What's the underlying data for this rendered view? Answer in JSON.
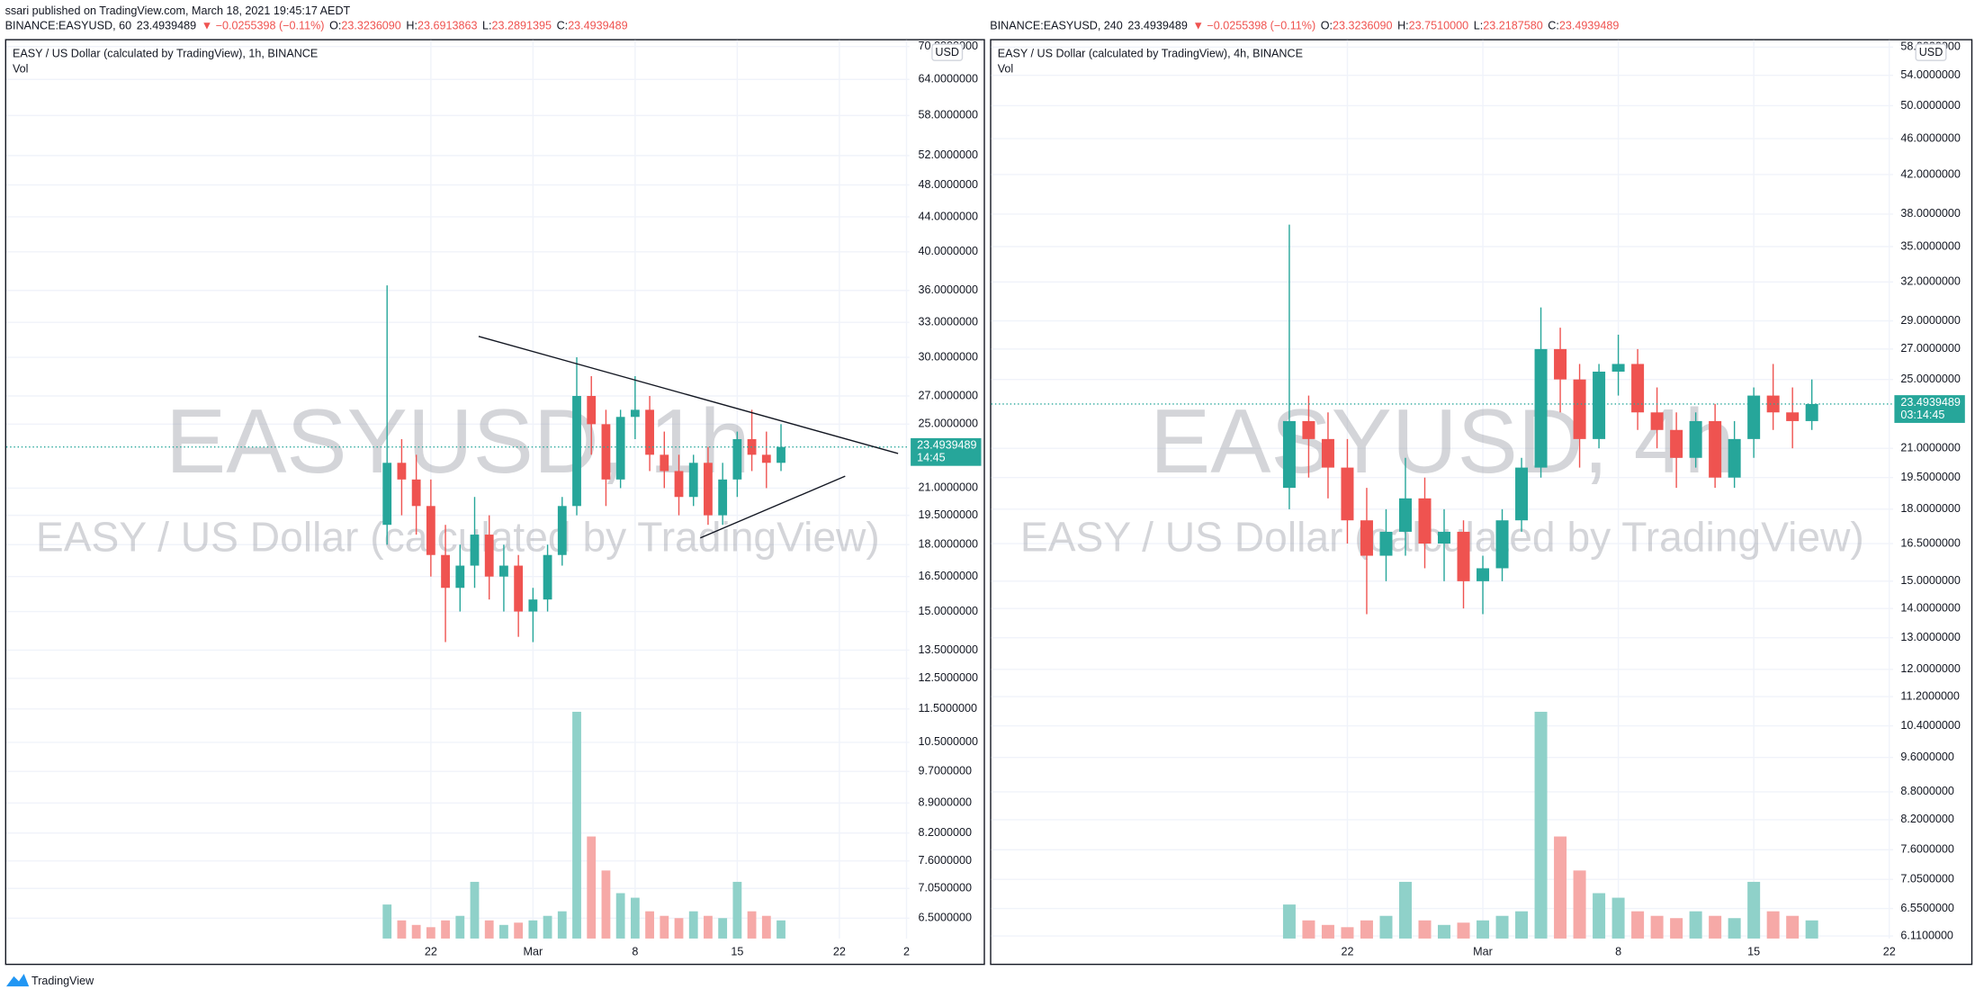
{
  "header": "ssari published on TradingView.com, March 18, 2021 19:45:17 AEDT",
  "footer": "TradingView",
  "chart_data": [
    {
      "type": "candlestick",
      "legend": {
        "symbol": "BINANCE:EASYUSD, 60",
        "price": "23.4939489",
        "change": "▼ −0.0255398 (−0.11%)",
        "ohlc": [
          {
            "label": "O:",
            "value": "23.3236090"
          },
          {
            "label": "H:",
            "value": "23.6913863"
          },
          {
            "label": "L:",
            "value": "23.2891395"
          },
          {
            "label": "C:",
            "value": "23.4939489"
          }
        ]
      },
      "title": "EASY / US Dollar (calculated by TradingView), 1h, BINANCE",
      "subtitle": "Vol",
      "watermark": "EASYUSD, 1h",
      "watermark_sub": "EASY / US Dollar (calculated by TradingView)",
      "currency": "USD",
      "x": [
        19,
        20,
        21,
        22,
        23,
        24,
        25,
        26,
        27,
        28,
        29,
        30,
        31,
        32,
        33,
        34,
        35,
        36,
        37,
        38,
        39,
        40,
        41,
        42,
        43,
        44,
        45,
        46
      ],
      "open": [
        19,
        22.5,
        21.5,
        20,
        17.5,
        16,
        17,
        18.5,
        16.5,
        17,
        15,
        15.5,
        17.5,
        20,
        27,
        25,
        21.5,
        25.5,
        26,
        23,
        22,
        20.5,
        22.5,
        19.5,
        21.5,
        24,
        23,
        22.5
      ],
      "high": [
        36.5,
        24,
        23,
        21.5,
        19,
        18,
        20.5,
        19.5,
        18,
        17.5,
        16,
        18,
        20.5,
        30,
        28.5,
        26,
        26,
        28.5,
        27,
        24.5,
        23,
        23,
        23.5,
        22.5,
        24.5,
        26,
        24.5,
        25
      ],
      "low": [
        18,
        19.5,
        18.5,
        16.5,
        13.8,
        15,
        16,
        15.5,
        15,
        14,
        13.8,
        15,
        17,
        19.5,
        23,
        20,
        21,
        24,
        22,
        21,
        19.5,
        20,
        19,
        19,
        20.5,
        22,
        21,
        22
      ],
      "close": [
        22.5,
        21.5,
        20,
        17.5,
        16,
        17,
        18.5,
        16.5,
        17,
        15,
        15.5,
        17.5,
        20,
        27,
        25,
        21.5,
        25.5,
        26,
        23,
        22,
        20.5,
        22.5,
        19.5,
        21.5,
        24,
        23,
        22.5,
        23.4939489
      ],
      "volume": [
        15,
        8,
        6,
        5,
        8,
        10,
        25,
        8,
        6,
        7,
        8,
        10,
        12,
        100,
        45,
        30,
        20,
        18,
        12,
        10,
        9,
        12,
        10,
        9,
        25,
        12,
        10,
        8
      ],
      "xlim": [
        -7.1,
        54.8
      ],
      "xticks": [
        {
          "value": 22,
          "label": "22"
        },
        {
          "value": 29,
          "label": "Mar"
        },
        {
          "value": 36,
          "label": "8"
        },
        {
          "value": 43,
          "label": "15"
        },
        {
          "value": 50,
          "label": "22"
        },
        {
          "value": 54.6,
          "label": "2"
        }
      ],
      "ylim": [
        6.15,
        71.2
      ],
      "log_scale": true,
      "grid": true,
      "yticks": [
        {
          "value": 70,
          "label": "70.0000000"
        },
        {
          "value": 64,
          "label": "64.0000000"
        },
        {
          "value": 58,
          "label": "58.0000000"
        },
        {
          "value": 52,
          "label": "52.0000000"
        },
        {
          "value": 48,
          "label": "48.0000000"
        },
        {
          "value": 44,
          "label": "44.0000000"
        },
        {
          "value": 40,
          "label": "40.0000000"
        },
        {
          "value": 36,
          "label": "36.0000000"
        },
        {
          "value": 33,
          "label": "33.0000000"
        },
        {
          "value": 30,
          "label": "30.0000000"
        },
        {
          "value": 27,
          "label": "27.0000000"
        },
        {
          "value": 25,
          "label": "25.0000000"
        },
        {
          "value": 21,
          "label": "21.0000000"
        },
        {
          "value": 19.5,
          "label": "19.5000000"
        },
        {
          "value": 18,
          "label": "18.0000000"
        },
        {
          "value": 16.5,
          "label": "16.5000000"
        },
        {
          "value": 15,
          "label": "15.0000000"
        },
        {
          "value": 13.5,
          "label": "13.5000000"
        },
        {
          "value": 12.5,
          "label": "12.5000000"
        },
        {
          "value": 11.5,
          "label": "11.5000000"
        },
        {
          "value": 10.5,
          "label": "10.5000000"
        },
        {
          "value": 9.7,
          "label": "9.7000000"
        },
        {
          "value": 8.9,
          "label": "8.9000000"
        },
        {
          "value": 8.2,
          "label": "8.2000000"
        },
        {
          "value": 7.6,
          "label": "7.6000000"
        },
        {
          "value": 7.05,
          "label": "7.0500000"
        },
        {
          "value": 6.5,
          "label": "6.5000000"
        }
      ],
      "last_price": {
        "value": 23.4939489,
        "label": "23.4939489"
      },
      "countdown": "14:45",
      "up_color": "#26a69a",
      "down_color": "#ef5350",
      "volume_up_color": "#8fd1c9",
      "volume_down_color": "#f6a9a7"
    },
    {
      "type": "candlestick",
      "legend": {
        "symbol": "BINANCE:EASYUSD, 240",
        "price": "23.4939489",
        "change": "▼ −0.0255398 (−0.11%)",
        "ohlc": [
          {
            "label": "O:",
            "value": "23.3236090"
          },
          {
            "label": "H:",
            "value": "23.7510000"
          },
          {
            "label": "L:",
            "value": "23.2187580"
          },
          {
            "label": "C:",
            "value": "23.4939489"
          }
        ]
      },
      "title": "EASY / US Dollar (calculated by TradingView), 4h, BINANCE",
      "subtitle": "Vol",
      "watermark": "EASYUSD, 4h",
      "watermark_sub": "EASY / US Dollar (calculated by TradingView)",
      "currency": "USD",
      "x": [
        19,
        20,
        21,
        22,
        23,
        24,
        25,
        26,
        27,
        28,
        29,
        30,
        31,
        32,
        33,
        34,
        35,
        36,
        37,
        38,
        39,
        40,
        41,
        42,
        43,
        44,
        45,
        46
      ],
      "open": [
        19,
        22.5,
        21.5,
        20,
        17.5,
        16,
        17,
        18.5,
        16.5,
        17,
        15,
        15.5,
        17.5,
        20,
        27,
        25,
        21.5,
        25.5,
        26,
        23,
        22,
        20.5,
        22.5,
        19.5,
        21.5,
        24,
        23,
        22.5
      ],
      "high": [
        37,
        24,
        23,
        21.5,
        19,
        18,
        20.5,
        19.5,
        18,
        17.5,
        16,
        18,
        20.5,
        30,
        28.5,
        26,
        26,
        28,
        27,
        24.5,
        23,
        23,
        23.5,
        22.5,
        24.5,
        26,
        24.5,
        25
      ],
      "low": [
        18,
        19.5,
        18.5,
        16.5,
        13.8,
        15,
        16,
        15.5,
        15,
        14,
        13.8,
        15,
        17,
        19.5,
        23,
        20,
        21,
        24,
        22,
        21,
        19,
        20,
        19,
        19,
        20.5,
        22,
        21,
        22
      ],
      "close": [
        22.5,
        21.5,
        20,
        17.5,
        16,
        17,
        18.5,
        16.5,
        17,
        15,
        15.5,
        17.5,
        20,
        27,
        25,
        21.5,
        25.5,
        26,
        23,
        22,
        20.5,
        22.5,
        19.5,
        21.5,
        24,
        23,
        22.5,
        23.4939489
      ],
      "volume": [
        15,
        8,
        6,
        5,
        8,
        10,
        25,
        8,
        6,
        7,
        8,
        10,
        12,
        100,
        45,
        30,
        20,
        18,
        12,
        10,
        9,
        12,
        10,
        9,
        25,
        12,
        10,
        8
      ],
      "xlim": [
        3.6,
        50.2
      ],
      "xticks": [
        {
          "value": 22,
          "label": "22"
        },
        {
          "value": 29,
          "label": "Mar"
        },
        {
          "value": 36,
          "label": "8"
        },
        {
          "value": 43,
          "label": "15"
        },
        {
          "value": 50,
          "label": "22"
        }
      ],
      "ylim": [
        6.07,
        59
      ],
      "log_scale": true,
      "grid": true,
      "yticks": [
        {
          "value": 58,
          "label": "58.0000000"
        },
        {
          "value": 54,
          "label": "54.0000000"
        },
        {
          "value": 50,
          "label": "50.0000000"
        },
        {
          "value": 46,
          "label": "46.0000000"
        },
        {
          "value": 42,
          "label": "42.0000000"
        },
        {
          "value": 38,
          "label": "38.0000000"
        },
        {
          "value": 35,
          "label": "35.0000000"
        },
        {
          "value": 32,
          "label": "32.0000000"
        },
        {
          "value": 29,
          "label": "29.0000000"
        },
        {
          "value": 27,
          "label": "27.0000000"
        },
        {
          "value": 25,
          "label": "25.0000000"
        },
        {
          "value": 21,
          "label": "21.0000000"
        },
        {
          "value": 19.5,
          "label": "19.5000000"
        },
        {
          "value": 18,
          "label": "18.0000000"
        },
        {
          "value": 16.5,
          "label": "16.5000000"
        },
        {
          "value": 15,
          "label": "15.0000000"
        },
        {
          "value": 14,
          "label": "14.0000000"
        },
        {
          "value": 13,
          "label": "13.0000000"
        },
        {
          "value": 12,
          "label": "12.0000000"
        },
        {
          "value": 11.2,
          "label": "11.2000000"
        },
        {
          "value": 10.4,
          "label": "10.4000000"
        },
        {
          "value": 9.6,
          "label": "9.6000000"
        },
        {
          "value": 8.8,
          "label": "8.8000000"
        },
        {
          "value": 8.2,
          "label": "8.2000000"
        },
        {
          "value": 7.6,
          "label": "7.6000000"
        },
        {
          "value": 7.05,
          "label": "7.0500000"
        },
        {
          "value": 6.55,
          "label": "6.5500000"
        },
        {
          "value": 6.11,
          "label": "6.1100000"
        }
      ],
      "last_price": {
        "value": 23.4939489,
        "label": "23.4939489"
      },
      "countdown": "03:14:45",
      "up_color": "#26a69a",
      "down_color": "#ef5350",
      "volume_up_color": "#8fd1c9",
      "volume_down_color": "#f6a9a7"
    }
  ]
}
